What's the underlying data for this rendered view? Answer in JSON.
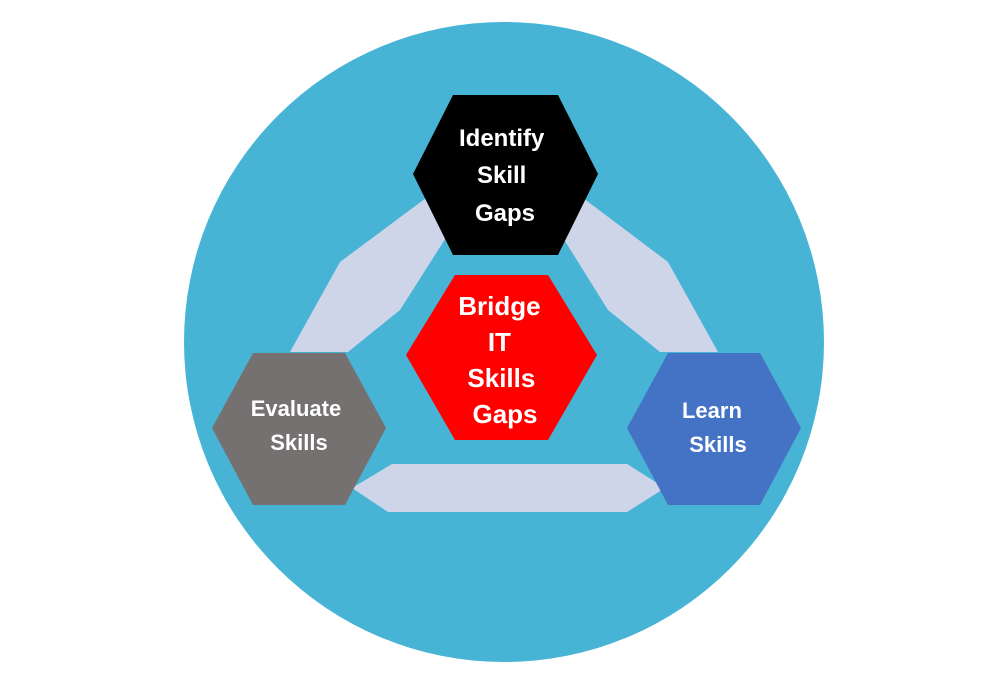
{
  "diagram": {
    "colors": {
      "circle": "#47B4D6",
      "connector": "#CFD5E9",
      "identify": "#000000",
      "center": "#FF0000",
      "evaluate": "#767171",
      "learn": "#4472C4",
      "text": "#FFFFFF"
    },
    "nodes": {
      "identify": {
        "lines": [
          "Identify",
          "Skill",
          "Gaps"
        ]
      },
      "center": {
        "lines": [
          "Bridge",
          "IT",
          "Skills",
          "Gaps"
        ]
      },
      "evaluate": {
        "lines": [
          "Evaluate",
          "Skills"
        ]
      },
      "learn": {
        "lines": [
          "Learn",
          "Skills"
        ]
      }
    },
    "cycle": [
      "identify",
      "learn",
      "evaluate"
    ],
    "hub": "center"
  }
}
